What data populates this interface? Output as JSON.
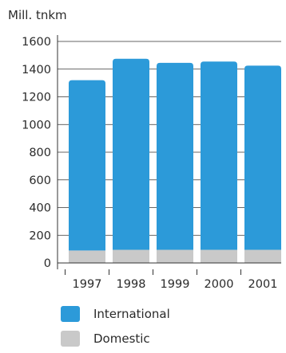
{
  "chart_data": {
    "type": "bar",
    "stacked": true,
    "ylabel": "Mill. tnkm",
    "ylim": [
      0,
      1600
    ],
    "yticks": [
      0,
      200,
      400,
      600,
      800,
      1000,
      1200,
      1400,
      1600
    ],
    "grid": true,
    "categories": [
      "1997",
      "1998",
      "1999",
      "2000",
      "2001"
    ],
    "series": [
      {
        "name": "Domestic",
        "values": [
          90,
          95,
          95,
          95,
          95
        ],
        "color": "#c9c9c9"
      },
      {
        "name": "International",
        "values": [
          1230,
          1380,
          1350,
          1360,
          1330
        ],
        "color": "#2c9ad9"
      }
    ],
    "legend_position": "bottom"
  },
  "legend": [
    {
      "label": "International",
      "color": "#2c9ad9"
    },
    {
      "label": "Domestic",
      "color": "#c9c9c9"
    }
  ]
}
